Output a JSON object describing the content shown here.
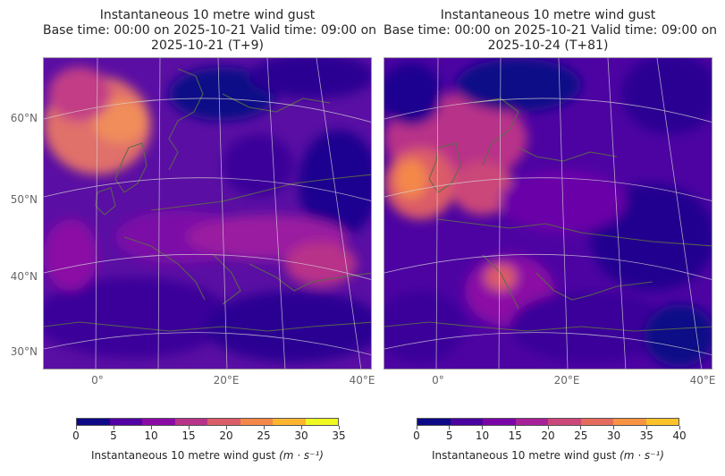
{
  "panels": [
    {
      "title_lines": [
        "Instantaneous 10 metre wind gust",
        "Base time: 00:00 on 2025-10-21   Valid time: 09:00 on",
        "2025-10-21 (T+9)"
      ],
      "lat_labels": [
        "60°N",
        "50°N",
        "40°N",
        "30°N"
      ],
      "lon_labels": [
        "0°",
        "20°E",
        "40°E"
      ],
      "colorbar": {
        "ticks": [
          "0",
          "5",
          "10",
          "15",
          "20",
          "25",
          "30",
          "35"
        ],
        "label": "Instantaneous 10 metre wind gust",
        "unit": "(m · s⁻¹)",
        "colors": [
          "#0d0887",
          "#5202a4",
          "#8b0aa5",
          "#b83289",
          "#db5c68",
          "#f48849",
          "#fdb42f",
          "#f0f921"
        ]
      }
    },
    {
      "title_lines": [
        "Instantaneous 10 metre wind gust",
        "Base time: 00:00 on 2025-10-21   Valid time: 09:00 on",
        "2025-10-24 (T+81)"
      ],
      "lat_labels": [],
      "lon_labels": [
        "0°",
        "20°E",
        "40°E"
      ],
      "colorbar": {
        "ticks": [
          "0",
          "5",
          "10",
          "15",
          "20",
          "25",
          "30",
          "35",
          "40"
        ],
        "label": "Instantaneous 10 metre wind gust",
        "unit": "(m · s⁻¹)",
        "colors": [
          "#0d0887",
          "#4a02a0",
          "#7a04a8",
          "#a62098",
          "#cb4679",
          "#e56b5d",
          "#f89441",
          "#fdc328"
        ]
      }
    }
  ]
}
